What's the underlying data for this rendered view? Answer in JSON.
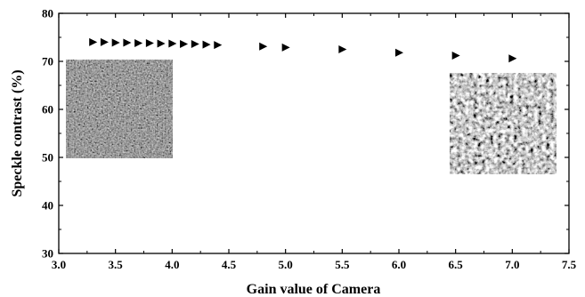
{
  "chart_data": {
    "type": "scatter",
    "title": "",
    "xlabel": "Gain value of Camera",
    "ylabel": "Speckle contrast (%)",
    "xlim": [
      3.0,
      7.5
    ],
    "ylim": [
      30,
      80
    ],
    "x_ticks": [
      "3.0",
      "3.5",
      "4.0",
      "4.5",
      "5.0",
      "5.5",
      "6.0",
      "6.5",
      "7.0",
      "7.5"
    ],
    "y_ticks": [
      "30",
      "40",
      "50",
      "60",
      "70",
      "80"
    ],
    "grid": false,
    "legend": "none",
    "marker": "right-pointing triangle",
    "series": [
      {
        "x": [
          3.3,
          3.4,
          3.5,
          3.6,
          3.7,
          3.8,
          3.9,
          4.0,
          4.1,
          4.2,
          4.3,
          4.4,
          4.8,
          5.0,
          5.5,
          6.0,
          6.5,
          7.0
        ],
        "y": [
          74.0,
          74.0,
          73.9,
          73.9,
          73.8,
          73.8,
          73.7,
          73.7,
          73.6,
          73.6,
          73.5,
          73.4,
          73.1,
          72.9,
          72.5,
          71.8,
          71.2,
          70.6
        ]
      }
    ],
    "insets": [
      {
        "description": "speckle-pattern-low-contrast",
        "location": "upper-left"
      },
      {
        "description": "speckle-pattern-high-contrast",
        "location": "right"
      }
    ]
  }
}
